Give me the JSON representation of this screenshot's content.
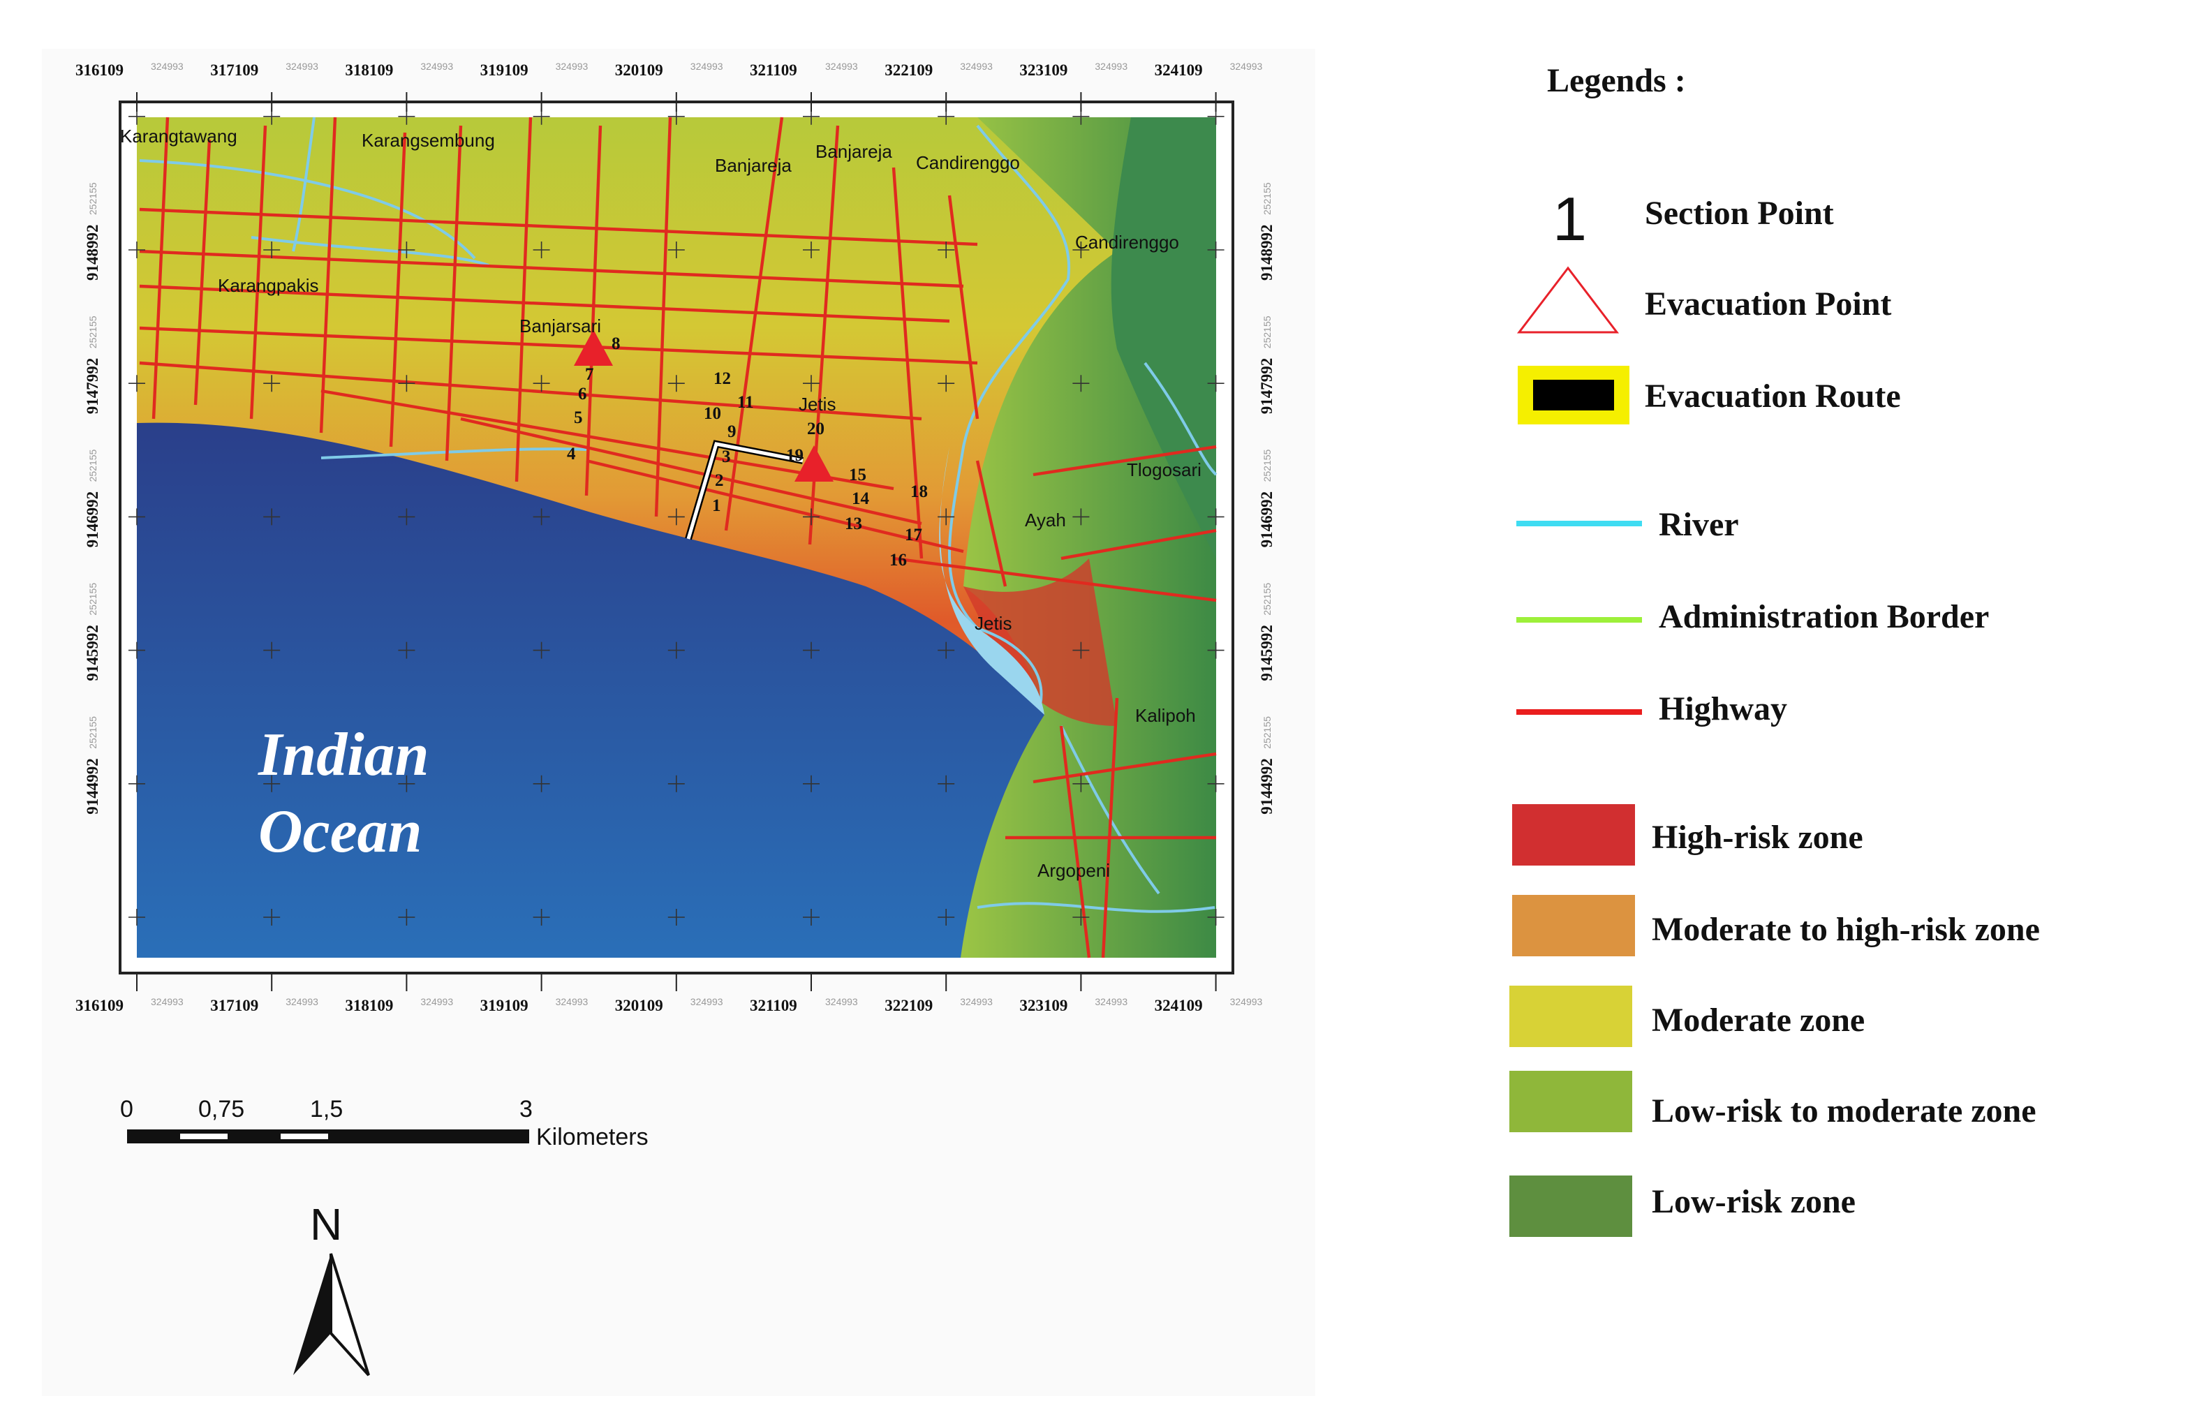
{
  "map": {
    "x_labels": [
      {
        "main": "316109",
        "minor": "324993"
      },
      {
        "main": "317109",
        "minor": "324993"
      },
      {
        "main": "318109",
        "minor": "324993"
      },
      {
        "main": "319109",
        "minor": "324993"
      },
      {
        "main": "320109",
        "minor": "324993"
      },
      {
        "main": "321109",
        "minor": "324993"
      },
      {
        "main": "322109",
        "minor": "324993"
      },
      {
        "main": "323109",
        "minor": "324993"
      },
      {
        "main": "324109",
        "minor": "324993"
      }
    ],
    "y_labels": [
      {
        "main": "9148992",
        "minor": "252155"
      },
      {
        "main": "9147992",
        "minor": "252155"
      },
      {
        "main": "9146992",
        "minor": "252155"
      },
      {
        "main": "9145992",
        "minor": "252155"
      },
      {
        "main": "9144992",
        "minor": "252155"
      }
    ],
    "places": [
      "Karangtawang",
      "Karangsembung",
      "Banjareja",
      "Banjareja",
      "Candirenggo",
      "Candirenggo",
      "Karangpakis",
      "Banjarsari",
      "Jetis",
      "Tlogosari",
      "Ayah",
      "Jetis",
      "Kalipoh",
      "Argopeni"
    ],
    "section_points": [
      "1",
      "2",
      "3",
      "4",
      "5",
      "6",
      "7",
      "8",
      "9",
      "10",
      "11",
      "12",
      "13",
      "14",
      "15",
      "16",
      "17",
      "18",
      "19",
      "20"
    ],
    "ocean_label": [
      "Indian",
      "Ocean"
    ]
  },
  "scale_bar": {
    "ticks": [
      "0",
      "0,75",
      "1,5",
      "3"
    ],
    "unit": "Kilometers"
  },
  "north": "N",
  "legend": {
    "title": "Legends :",
    "items": [
      {
        "label": "Section Point",
        "symbol": "1"
      },
      {
        "label": "Evacuation Point"
      },
      {
        "label": "Evacuation Route"
      },
      {
        "label": "River"
      },
      {
        "label": "Administration Border"
      },
      {
        "label": "Highway"
      },
      {
        "label": "High-risk zone"
      },
      {
        "label": "Moderate to high-risk zone"
      },
      {
        "label": "Moderate zone"
      },
      {
        "label": "Low-risk to moderate zone"
      },
      {
        "label": "Low-risk zone"
      }
    ]
  }
}
